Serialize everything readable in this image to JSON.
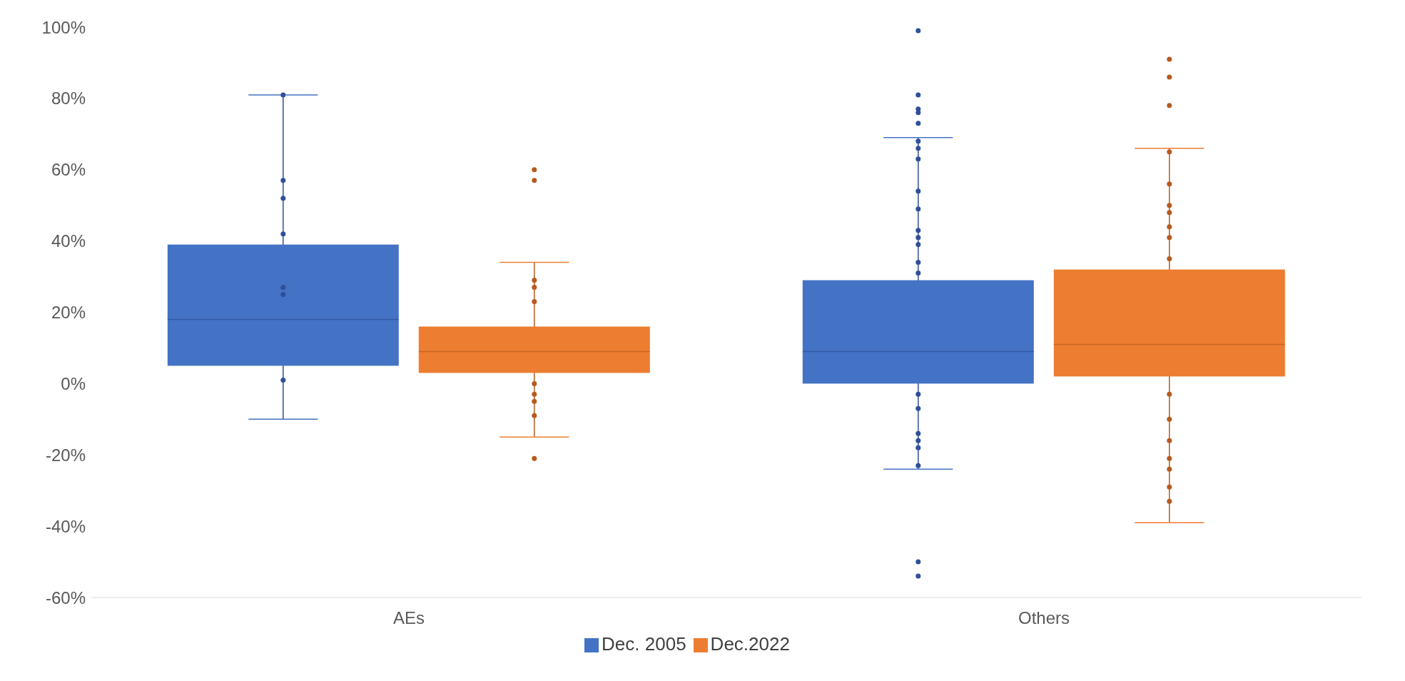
{
  "chart_data": {
    "type": "box",
    "categories": [
      "AEs",
      "Others"
    ],
    "series": [
      {
        "name": "Dec. 2005",
        "color": "#4472c4",
        "boxes": [
          {
            "low": -10,
            "q1": 5,
            "median": 18,
            "q3": 39,
            "high": 81
          },
          {
            "low": -24,
            "q1": 0,
            "median": 9,
            "q3": 29,
            "high": 69,
            "outliers": [
              99,
              81,
              77,
              76,
              73,
              -50,
              -54
            ]
          }
        ]
      },
      {
        "name": "Dec.2022",
        "color": "#ed7d31",
        "boxes": [
          {
            "low": -15,
            "q1": 3,
            "median": 9,
            "q3": 16,
            "high": 34,
            "outliers": [
              60,
              57,
              -21
            ]
          },
          {
            "low": -39,
            "q1": 2,
            "median": 11,
            "q3": 32,
            "high": 66,
            "outliers": [
              91,
              86,
              78
            ]
          }
        ]
      },
      {
        "type": "scatter",
        "color": "#2f4f99",
        "x": [
          "AEs",
          "AEs",
          "AEs",
          "AEs",
          "AEs",
          "AEs",
          "AEs",
          "Others",
          "Others",
          "Others",
          "Others",
          "Others",
          "Others",
          "Others",
          "Others",
          "Others",
          "Others",
          "Others",
          "Others",
          "Others",
          "Others",
          "Others",
          "Others"
        ],
        "values": [
          81,
          57,
          52,
          42,
          27,
          25,
          1,
          68,
          66,
          63,
          54,
          49,
          43,
          41,
          39,
          34,
          31,
          -3,
          -7,
          -14,
          -16,
          -18,
          -23
        ]
      },
      {
        "type": "scatter",
        "color": "#b85a1e",
        "x": [
          "AEs",
          "AEs",
          "AEs",
          "AEs",
          "AEs",
          "AEs",
          "AEs",
          "Others",
          "Others",
          "Others",
          "Others",
          "Others",
          "Others",
          "Others",
          "Others",
          "Others",
          "Others",
          "Others",
          "Others",
          "Others",
          "Others"
        ],
        "values": [
          29,
          27,
          23,
          0,
          -3,
          -5,
          -9,
          65,
          56,
          50,
          48,
          44,
          41,
          35,
          -3,
          -10,
          -16,
          -21,
          -24,
          -29,
          -33
        ]
      }
    ],
    "ylim": [
      -60,
      100
    ],
    "yticks": [
      {
        "value": -60,
        "label": "-60%"
      },
      {
        "value": -40,
        "label": "-40%"
      },
      {
        "value": -20,
        "label": "-20%"
      },
      {
        "value": 0,
        "label": "0%"
      },
      {
        "value": 20,
        "label": "20%"
      },
      {
        "value": 40,
        "label": "40%"
      },
      {
        "value": 60,
        "label": "60%"
      },
      {
        "value": 80,
        "label": "80%"
      },
      {
        "value": 100,
        "label": "100%"
      }
    ],
    "legend": "bottom"
  }
}
